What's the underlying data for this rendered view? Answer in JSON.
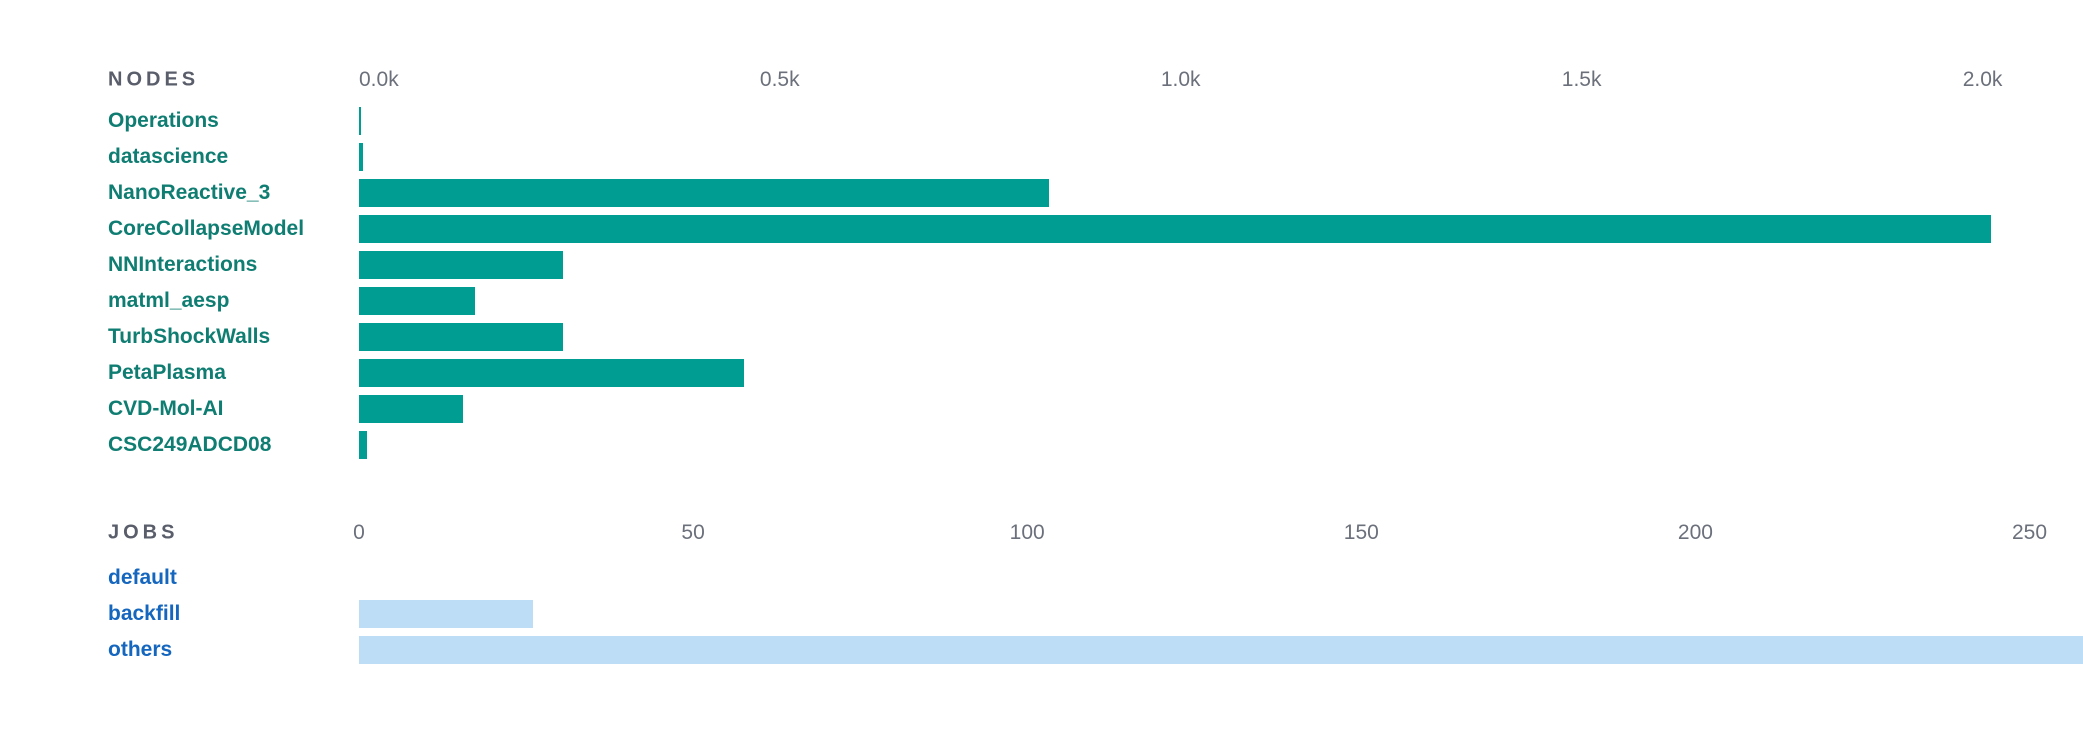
{
  "colors": {
    "background": "#FFFFFF",
    "section_header": "#5A5E6B",
    "axis_tick": "#6B707B",
    "nodes_bar": "#009E92",
    "nodes_category_label": "#0F7D72",
    "jobs_bar": "#BCDDF5",
    "jobs_category_label": "#1566BE"
  },
  "chart_data": [
    {
      "type": "bar",
      "orientation": "horizontal",
      "title": "NODES",
      "categories": [
        "Operations",
        "datascience",
        "NanoReactive_3",
        "CoreCollapseModel",
        "NNInteractions",
        "matml_aesp",
        "TurbShockWalls",
        "PetaPlasma",
        "CVD-Mol-AI",
        "CSC249ADCD08"
      ],
      "values": [
        2,
        5,
        860,
        2035,
        255,
        145,
        255,
        480,
        130,
        10
      ],
      "xlim": [
        0,
        2150
      ],
      "ticks": [
        {
          "label": "0.0k",
          "value": 0
        },
        {
          "label": "0.5k",
          "value": 500
        },
        {
          "label": "1.0k",
          "value": 1000
        },
        {
          "label": "1.5k",
          "value": 1500
        },
        {
          "label": "2.0k",
          "value": 2000
        }
      ],
      "grid": false,
      "legend": false,
      "tick_label_anchor": "start",
      "bar_color": "#009E92",
      "category_label_color": "#0F7D72",
      "annotations": []
    },
    {
      "type": "bar",
      "orientation": "horizontal",
      "title": "JOBS",
      "categories": [
        "default",
        "backfill",
        "others"
      ],
      "values": [
        0,
        26,
        260
      ],
      "xlim": [
        0,
        258
      ],
      "ticks": [
        {
          "label": "0",
          "value": 0
        },
        {
          "label": "50",
          "value": 50
        },
        {
          "label": "100",
          "value": 100
        },
        {
          "label": "150",
          "value": 150
        },
        {
          "label": "200",
          "value": 200
        },
        {
          "label": "250",
          "value": 250
        }
      ],
      "grid": false,
      "legend": false,
      "tick_label_anchor": "middle",
      "bar_color": "#BCDDF5",
      "category_label_color": "#1566BE",
      "annotations": [
        "others bar extends past the 250 tick and is clipped by the right edge of the view"
      ]
    }
  ]
}
